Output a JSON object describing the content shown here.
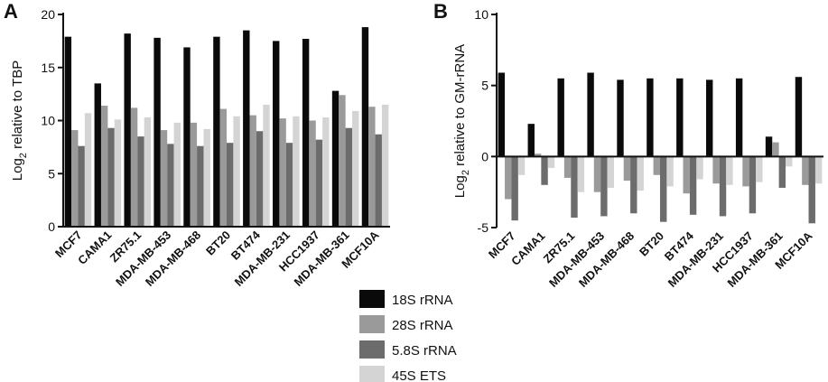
{
  "legend": [
    {
      "label": "18S rRNA",
      "color": "#0a0a0a"
    },
    {
      "label": "28S rRNA",
      "color": "#9a9a9a"
    },
    {
      "label": "5.8S rRNA",
      "color": "#6c6c6c"
    },
    {
      "label": "45S ETS",
      "color": "#d4d4d4"
    }
  ],
  "chart_data": [
    {
      "panel_label": "A",
      "type": "bar",
      "ylabel_main": "Log",
      "ylabel_sub": "2",
      "ylabel_rest": " relative to TBP",
      "ylim": [
        0,
        20
      ],
      "yticks": [
        "0",
        "5",
        "10",
        "15",
        "20"
      ],
      "categories": [
        "MCF7",
        "CAMA1",
        "ZR75.1",
        "MDA-MB-453",
        "MDA-MB-468",
        "BT20",
        "BT474",
        "MDA-MB-231",
        "HCC1937",
        "MDA-MB-361",
        "MCF10A"
      ],
      "series": [
        {
          "name": "18S rRNA",
          "values": [
            17.9,
            13.5,
            18.2,
            17.8,
            16.9,
            17.9,
            18.5,
            17.5,
            17.7,
            12.8,
            18.8
          ]
        },
        {
          "name": "28S rRNA",
          "values": [
            9.1,
            11.4,
            11.2,
            9.1,
            9.8,
            11.1,
            10.5,
            10.2,
            10.0,
            12.4,
            11.3
          ]
        },
        {
          "name": "5.8S rRNA",
          "values": [
            7.6,
            9.3,
            8.5,
            7.8,
            7.6,
            7.9,
            9.0,
            7.9,
            8.2,
            9.3,
            8.7
          ]
        },
        {
          "name": "45S ETS",
          "values": [
            10.7,
            10.1,
            10.3,
            9.8,
            9.2,
            10.4,
            11.5,
            10.4,
            10.3,
            10.9,
            11.5
          ]
        }
      ]
    },
    {
      "panel_label": "B",
      "type": "bar",
      "ylabel_main": "Log",
      "ylabel_sub": "2",
      "ylabel_rest": " relative to GM-rRNA",
      "ylim": [
        -5,
        10
      ],
      "yticks": [
        "-5",
        "0",
        "5",
        "10"
      ],
      "categories": [
        "MCF7",
        "CAMA1",
        "ZR75.1",
        "MDA-MB-453",
        "MDA-MB-468",
        "BT20",
        "BT474",
        "MDA-MB-231",
        "HCC1937",
        "MDA-MB-361",
        "MCF10A"
      ],
      "series": [
        {
          "name": "18S rRNA",
          "values": [
            5.9,
            2.3,
            5.5,
            5.9,
            5.4,
            5.5,
            5.5,
            5.4,
            5.5,
            1.4,
            5.6
          ]
        },
        {
          "name": "28S rRNA",
          "values": [
            -3.0,
            0.2,
            -1.5,
            -2.5,
            -1.7,
            -1.3,
            -2.6,
            -1.9,
            -2.1,
            1.0,
            -2.0
          ]
        },
        {
          "name": "5.8S rRNA",
          "values": [
            -4.5,
            -2.0,
            -4.3,
            -4.2,
            -4.0,
            -4.6,
            -4.1,
            -4.2,
            -4.0,
            -2.2,
            -4.7
          ]
        },
        {
          "name": "45S ETS",
          "values": [
            -1.3,
            -0.8,
            -2.5,
            -2.2,
            -2.4,
            -2.1,
            -1.6,
            -2.0,
            -1.8,
            -0.7,
            -1.9
          ]
        }
      ]
    }
  ]
}
